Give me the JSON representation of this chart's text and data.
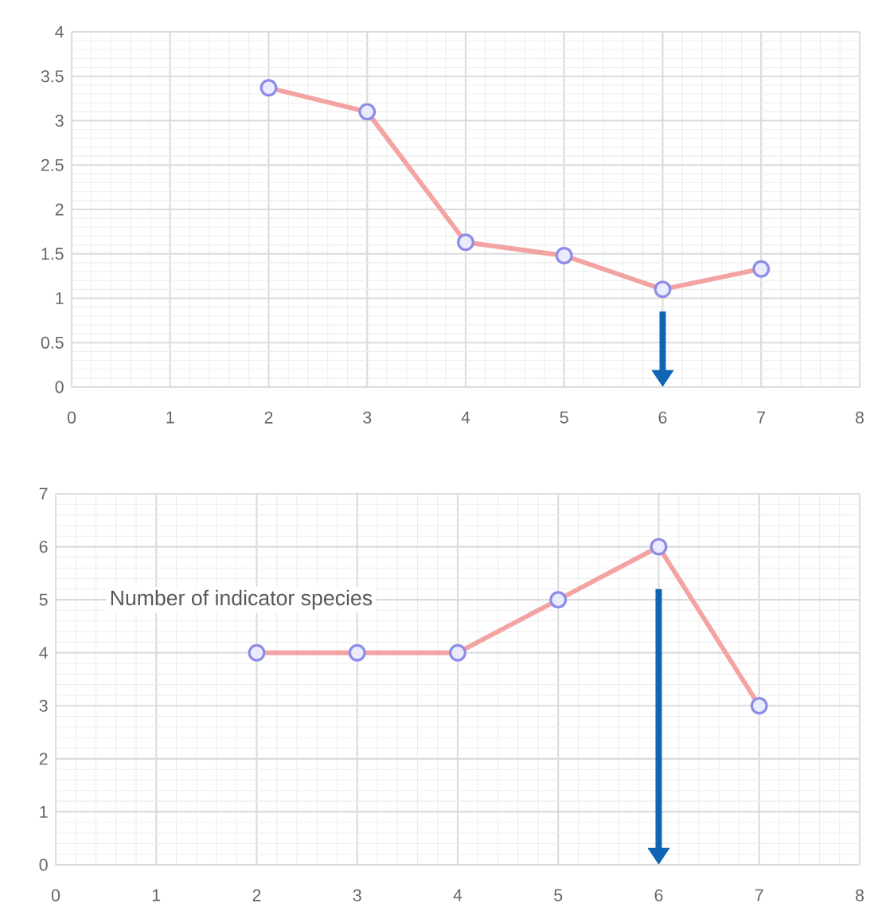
{
  "chart_data": [
    {
      "type": "line",
      "x": [
        2,
        3,
        4,
        5,
        6,
        7
      ],
      "series": [
        {
          "color": "#f4a3a3",
          "values": [
            3.37,
            3.1,
            1.63,
            1.48,
            1.1,
            1.33
          ]
        }
      ],
      "xlim": [
        0,
        8
      ],
      "ylim": [
        0,
        4
      ],
      "xticks": [
        0,
        1,
        2,
        3,
        4,
        5,
        6,
        7,
        8
      ],
      "yticks": [
        0,
        0.5,
        1,
        1.5,
        2,
        2.5,
        3,
        3.5,
        4
      ],
      "grid": true,
      "marker": "circle",
      "line_style": "solid"
    },
    {
      "type": "line",
      "x": [
        2,
        3,
        4,
        5,
        6,
        7
      ],
      "series": [
        {
          "color": "#f4a3a3",
          "values": [
            4,
            4,
            4,
            5,
            6,
            3
          ]
        }
      ],
      "xlim": [
        0,
        8
      ],
      "ylim": [
        0,
        7
      ],
      "xticks": [
        0,
        1,
        2,
        3,
        4,
        5,
        6,
        7,
        8
      ],
      "yticks": [
        0,
        1,
        2,
        3,
        4,
        5,
        6,
        7
      ],
      "grid": true,
      "marker": "circle",
      "line_style": "solid",
      "annotations": [
        "Number of indicator species"
      ]
    }
  ]
}
